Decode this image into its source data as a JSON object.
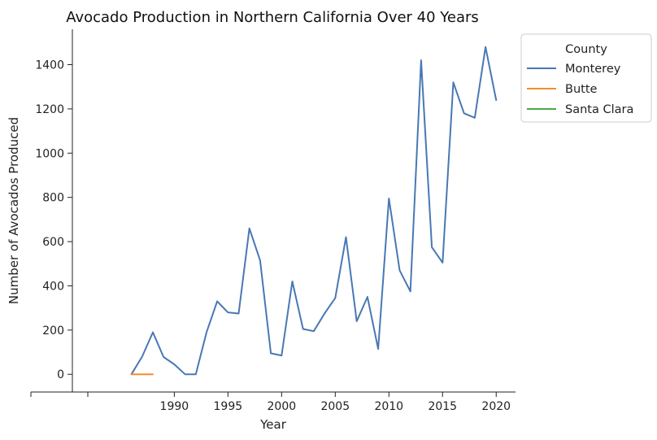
{
  "chart_data": {
    "type": "line",
    "title": "Avocado Production in Northern California Over 40 Years",
    "xlabel": "Year",
    "ylabel": "Number of Avocados Produced",
    "xlim": [
      1980.5,
      2021.8
    ],
    "ylim": [
      -80,
      1560
    ],
    "xticks": [
      1990,
      1995,
      2000,
      2005,
      2010,
      2015,
      2020
    ],
    "yticks": [
      0,
      200,
      400,
      600,
      800,
      1000,
      1200,
      1400
    ],
    "legend": {
      "title": "County",
      "position": "top-right-outside"
    },
    "series": [
      {
        "name": "Monterey",
        "color": "#4878b4",
        "x": [
          1986,
          1987,
          1988,
          1989,
          1990,
          1991,
          1992,
          1993,
          1994,
          1995,
          1996,
          1997,
          1998,
          1999,
          2000,
          2001,
          2002,
          2003,
          2004,
          2005,
          2006,
          2007,
          2008,
          2009,
          2010,
          2011,
          2012,
          2013,
          2014,
          2015,
          2016,
          2017,
          2018,
          2019,
          2020
        ],
        "y": [
          0,
          80,
          190,
          78,
          45,
          0,
          0,
          190,
          330,
          280,
          275,
          660,
          515,
          95,
          85,
          420,
          205,
          195,
          275,
          345,
          620,
          240,
          350,
          115,
          795,
          470,
          375,
          1420,
          575,
          505,
          1320,
          1180,
          1160,
          1480,
          1240
        ]
      },
      {
        "name": "Butte",
        "color": "#f28e2b",
        "x": [
          1986,
          1987,
          1988
        ],
        "y": [
          0,
          0,
          0
        ]
      },
      {
        "name": "Santa Clara",
        "color": "#4aa84a",
        "x": [],
        "y": []
      }
    ]
  }
}
